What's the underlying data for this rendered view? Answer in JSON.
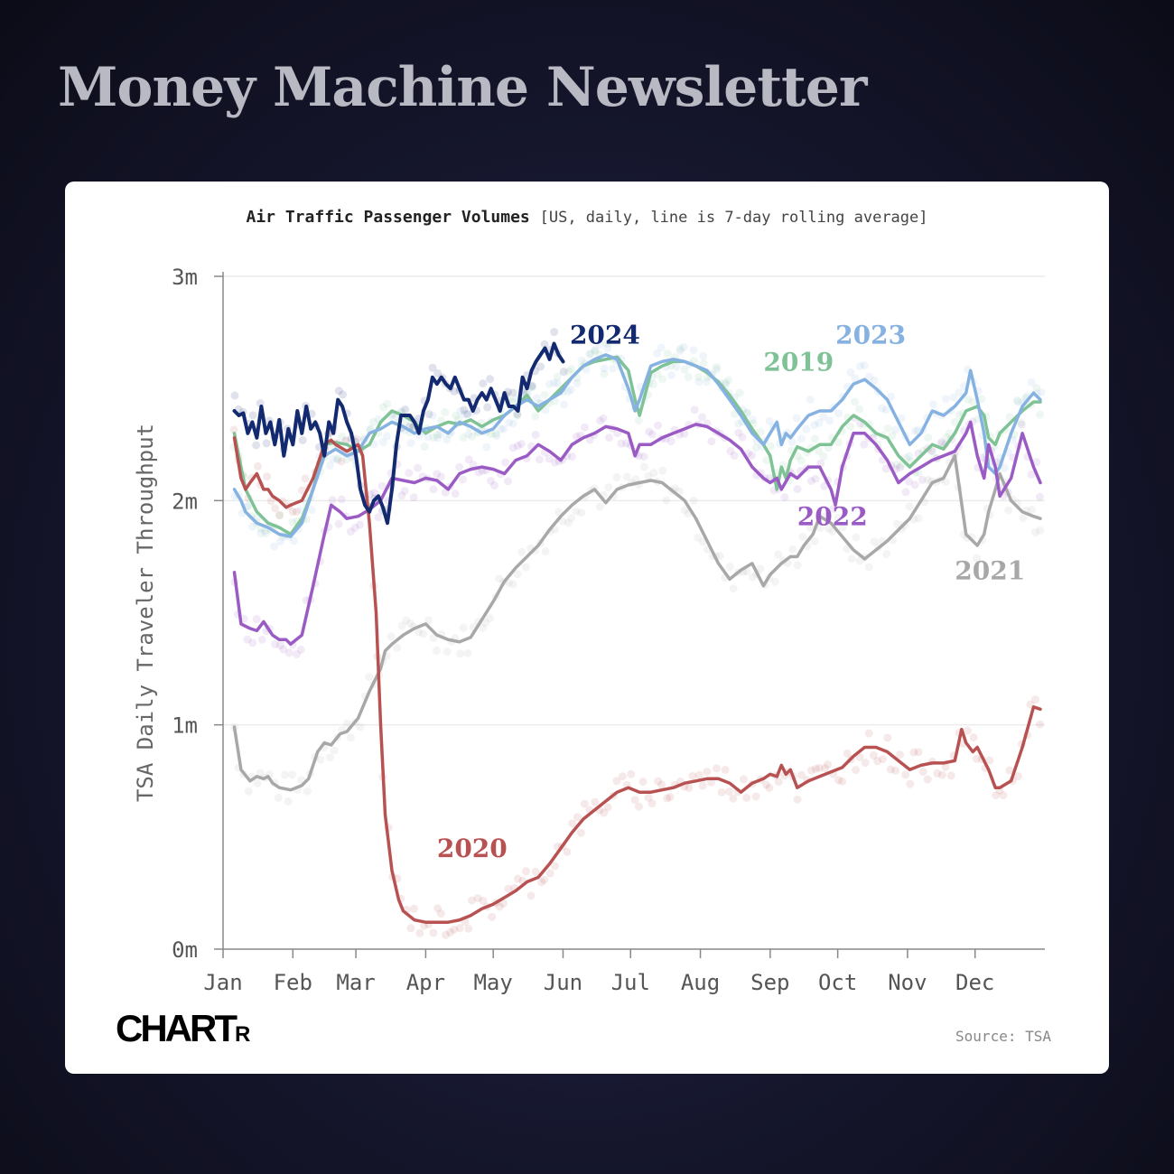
{
  "header": {
    "title": "Money Machine Newsletter"
  },
  "footer": {
    "brand": "CHART",
    "brand_suffix": "R",
    "source": "Source: TSA"
  },
  "colors": {
    "2019": "#7fc296",
    "2020": "#b85252",
    "2021": "#a8a8a8",
    "2022": "#9a5cc4",
    "2023": "#86b2e2",
    "2024": "#142a70"
  },
  "chart_data": {
    "type": "line",
    "title": "Air Traffic Passenger Volumes",
    "subtitle": "[US, daily, line is 7-day rolling average]",
    "xlabel": "",
    "ylabel": "TSA Daily Traveler Throughput",
    "xlim": [
      0,
      365
    ],
    "ylim": [
      0,
      3
    ],
    "y_unit": "millions",
    "yticks": [
      0,
      1,
      2,
      3
    ],
    "ytick_labels": [
      "0m",
      "1m",
      "2m",
      "3m"
    ],
    "months": [
      "Jan",
      "Feb",
      "Mar",
      "Apr",
      "May",
      "Jun",
      "Jul",
      "Aug",
      "Sep",
      "Oct",
      "Nov",
      "Dec"
    ],
    "month_days": [
      0,
      31,
      59,
      90,
      120,
      151,
      181,
      212,
      243,
      273,
      304,
      334
    ],
    "grid": true,
    "series": [
      {
        "name": "2021",
        "x": [
          5,
          8,
          12,
          15,
          18,
          20,
          22,
          25,
          30,
          35,
          38,
          42,
          45,
          48,
          52,
          55,
          60,
          65,
          70,
          72,
          75,
          80,
          85,
          90,
          95,
          100,
          105,
          110,
          115,
          120,
          125,
          130,
          135,
          140,
          145,
          150,
          155,
          160,
          165,
          170,
          175,
          180,
          185,
          190,
          195,
          200,
          205,
          210,
          215,
          220,
          225,
          230,
          235,
          240,
          243,
          248,
          252,
          255,
          258,
          262,
          265,
          270,
          275,
          280,
          285,
          290,
          295,
          300,
          305,
          310,
          315,
          320,
          325,
          330,
          335,
          338,
          340,
          343,
          345,
          350,
          355,
          360,
          363
        ],
        "values": [
          0.99,
          0.8,
          0.75,
          0.77,
          0.76,
          0.77,
          0.74,
          0.72,
          0.71,
          0.73,
          0.76,
          0.88,
          0.92,
          0.91,
          0.96,
          0.97,
          1.03,
          1.15,
          1.25,
          1.33,
          1.36,
          1.4,
          1.43,
          1.45,
          1.4,
          1.38,
          1.37,
          1.39,
          1.47,
          1.55,
          1.64,
          1.7,
          1.75,
          1.8,
          1.87,
          1.93,
          1.98,
          2.02,
          2.05,
          1.99,
          2.05,
          2.07,
          2.08,
          2.09,
          2.08,
          2.04,
          2.0,
          1.92,
          1.82,
          1.72,
          1.65,
          1.69,
          1.72,
          1.62,
          1.67,
          1.72,
          1.75,
          1.75,
          1.8,
          1.85,
          1.93,
          1.9,
          1.84,
          1.78,
          1.74,
          1.78,
          1.82,
          1.87,
          1.92,
          2.0,
          2.08,
          2.1,
          2.2,
          1.85,
          1.8,
          1.85,
          1.95,
          2.05,
          2.12,
          2.0,
          1.95,
          1.93,
          1.92
        ]
      },
      {
        "name": "2019",
        "x": [
          5,
          8,
          10,
          15,
          20,
          25,
          30,
          35,
          40,
          45,
          50,
          55,
          60,
          65,
          70,
          75,
          80,
          85,
          90,
          95,
          100,
          105,
          110,
          115,
          120,
          125,
          130,
          135,
          140,
          145,
          150,
          155,
          160,
          165,
          170,
          175,
          180,
          183,
          185,
          190,
          195,
          200,
          205,
          210,
          215,
          220,
          225,
          230,
          235,
          240,
          243,
          246,
          248,
          250,
          252,
          255,
          260,
          265,
          270,
          275,
          280,
          285,
          290,
          295,
          300,
          305,
          310,
          315,
          320,
          325,
          330,
          335,
          338,
          340,
          343,
          345,
          350,
          355,
          360,
          363
        ],
        "values": [
          2.3,
          2.15,
          2.05,
          1.95,
          1.9,
          1.88,
          1.85,
          1.92,
          2.05,
          2.25,
          2.26,
          2.25,
          2.22,
          2.25,
          2.35,
          2.4,
          2.38,
          2.35,
          2.3,
          2.33,
          2.35,
          2.34,
          2.36,
          2.33,
          2.36,
          2.38,
          2.42,
          2.47,
          2.4,
          2.45,
          2.5,
          2.55,
          2.6,
          2.62,
          2.63,
          2.64,
          2.58,
          2.45,
          2.38,
          2.57,
          2.6,
          2.62,
          2.62,
          2.6,
          2.57,
          2.53,
          2.47,
          2.4,
          2.32,
          2.25,
          2.2,
          2.05,
          2.15,
          2.1,
          2.18,
          2.24,
          2.22,
          2.25,
          2.25,
          2.33,
          2.38,
          2.35,
          2.3,
          2.28,
          2.2,
          2.15,
          2.2,
          2.25,
          2.23,
          2.3,
          2.4,
          2.42,
          2.38,
          2.28,
          2.25,
          2.3,
          2.35,
          2.4,
          2.44,
          2.44
        ]
      },
      {
        "name": "2023",
        "x": [
          5,
          8,
          10,
          15,
          20,
          25,
          30,
          35,
          40,
          45,
          50,
          55,
          60,
          65,
          70,
          75,
          80,
          85,
          90,
          95,
          100,
          105,
          110,
          115,
          120,
          125,
          130,
          135,
          140,
          145,
          150,
          155,
          160,
          165,
          170,
          175,
          180,
          183,
          185,
          190,
          195,
          200,
          205,
          210,
          215,
          220,
          225,
          230,
          235,
          240,
          243,
          246,
          248,
          250,
          252,
          255,
          260,
          265,
          270,
          275,
          280,
          285,
          290,
          295,
          300,
          305,
          310,
          315,
          320,
          325,
          330,
          332,
          335,
          338,
          340,
          343,
          345,
          350,
          355,
          360,
          363
        ],
        "values": [
          2.05,
          2.0,
          1.95,
          1.9,
          1.88,
          1.85,
          1.84,
          1.9,
          2.05,
          2.2,
          2.23,
          2.2,
          2.22,
          2.3,
          2.32,
          2.35,
          2.33,
          2.3,
          2.32,
          2.33,
          2.3,
          2.35,
          2.33,
          2.3,
          2.32,
          2.38,
          2.42,
          2.45,
          2.42,
          2.45,
          2.48,
          2.55,
          2.6,
          2.63,
          2.65,
          2.63,
          2.5,
          2.4,
          2.45,
          2.6,
          2.62,
          2.63,
          2.62,
          2.6,
          2.58,
          2.52,
          2.45,
          2.38,
          2.3,
          2.25,
          2.3,
          2.35,
          2.25,
          2.3,
          2.28,
          2.32,
          2.38,
          2.4,
          2.4,
          2.45,
          2.52,
          2.54,
          2.5,
          2.45,
          2.35,
          2.25,
          2.3,
          2.4,
          2.38,
          2.42,
          2.48,
          2.58,
          2.45,
          2.3,
          2.15,
          2.12,
          2.15,
          2.3,
          2.42,
          2.48,
          2.45
        ]
      },
      {
        "name": "2022",
        "x": [
          5,
          8,
          12,
          15,
          18,
          20,
          22,
          25,
          28,
          30,
          35,
          40,
          45,
          48,
          52,
          55,
          60,
          65,
          70,
          75,
          80,
          85,
          90,
          95,
          100,
          105,
          110,
          115,
          120,
          125,
          130,
          135,
          140,
          145,
          150,
          155,
          160,
          165,
          170,
          175,
          180,
          183,
          185,
          190,
          195,
          200,
          205,
          210,
          215,
          220,
          225,
          230,
          235,
          240,
          243,
          246,
          248,
          252,
          255,
          260,
          265,
          270,
          272,
          275,
          280,
          285,
          290,
          295,
          300,
          305,
          310,
          315,
          320,
          325,
          330,
          332,
          335,
          338,
          340,
          343,
          345,
          350,
          355,
          360,
          363
        ],
        "values": [
          1.68,
          1.45,
          1.43,
          1.42,
          1.46,
          1.43,
          1.4,
          1.38,
          1.38,
          1.36,
          1.4,
          1.62,
          1.85,
          1.98,
          1.95,
          1.92,
          1.93,
          1.96,
          2.0,
          2.1,
          2.09,
          2.08,
          2.1,
          2.09,
          2.05,
          2.12,
          2.14,
          2.15,
          2.14,
          2.12,
          2.18,
          2.2,
          2.25,
          2.22,
          2.18,
          2.25,
          2.28,
          2.3,
          2.33,
          2.32,
          2.3,
          2.2,
          2.25,
          2.25,
          2.28,
          2.3,
          2.32,
          2.34,
          2.33,
          2.3,
          2.27,
          2.23,
          2.15,
          2.1,
          2.08,
          2.1,
          2.05,
          2.12,
          2.1,
          2.15,
          2.15,
          2.05,
          1.98,
          2.15,
          2.3,
          2.3,
          2.25,
          2.18,
          2.08,
          2.12,
          2.15,
          2.18,
          2.2,
          2.22,
          2.3,
          2.35,
          2.2,
          2.1,
          2.25,
          2.15,
          2.02,
          2.1,
          2.3,
          2.15,
          2.08
        ]
      },
      {
        "name": "2020",
        "x": [
          5,
          8,
          10,
          12,
          15,
          18,
          20,
          22,
          25,
          28,
          30,
          35,
          40,
          45,
          48,
          50,
          55,
          60,
          62,
          65,
          68,
          70,
          72,
          75,
          78,
          80,
          85,
          90,
          95,
          100,
          105,
          110,
          115,
          120,
          125,
          130,
          135,
          140,
          145,
          150,
          155,
          160,
          165,
          170,
          175,
          180,
          185,
          190,
          195,
          200,
          205,
          210,
          215,
          220,
          225,
          230,
          235,
          240,
          243,
          246,
          248,
          250,
          252,
          255,
          260,
          265,
          270,
          275,
          280,
          285,
          290,
          295,
          300,
          305,
          310,
          315,
          320,
          325,
          328,
          330,
          333,
          335,
          340,
          343,
          345,
          350,
          355,
          360,
          363
        ],
        "values": [
          2.28,
          2.1,
          2.05,
          2.08,
          2.12,
          2.05,
          2.05,
          2.02,
          2.0,
          1.97,
          1.98,
          2.0,
          2.1,
          2.25,
          2.27,
          2.25,
          2.22,
          2.25,
          2.2,
          1.9,
          1.5,
          1.0,
          0.6,
          0.35,
          0.22,
          0.17,
          0.13,
          0.12,
          0.12,
          0.12,
          0.13,
          0.15,
          0.18,
          0.2,
          0.23,
          0.26,
          0.3,
          0.32,
          0.38,
          0.45,
          0.52,
          0.58,
          0.62,
          0.66,
          0.7,
          0.72,
          0.7,
          0.7,
          0.71,
          0.72,
          0.74,
          0.75,
          0.76,
          0.76,
          0.74,
          0.7,
          0.74,
          0.76,
          0.78,
          0.77,
          0.82,
          0.78,
          0.8,
          0.72,
          0.75,
          0.77,
          0.79,
          0.81,
          0.86,
          0.9,
          0.9,
          0.88,
          0.84,
          0.8,
          0.82,
          0.83,
          0.83,
          0.84,
          0.98,
          0.92,
          0.88,
          0.9,
          0.8,
          0.72,
          0.72,
          0.75,
          0.9,
          1.08,
          1.07
        ]
      },
      {
        "name": "2024",
        "x": [
          5,
          7,
          9,
          11,
          13,
          15,
          17,
          19,
          21,
          23,
          25,
          27,
          29,
          31,
          33,
          35,
          37,
          39,
          41,
          43,
          45,
          47,
          49,
          51,
          53,
          55,
          57,
          59,
          61,
          63,
          65,
          67,
          69,
          71,
          73,
          75,
          77,
          79,
          81,
          83,
          85,
          87,
          89,
          91,
          93,
          95,
          97,
          99,
          101,
          103,
          105,
          107,
          109,
          111,
          113,
          115,
          117,
          119,
          121,
          123,
          125,
          127,
          129,
          131,
          133,
          135,
          137,
          139,
          141,
          143,
          145,
          147,
          149,
          151
        ],
        "values": [
          2.4,
          2.38,
          2.39,
          2.3,
          2.35,
          2.28,
          2.42,
          2.3,
          2.35,
          2.25,
          2.36,
          2.2,
          2.32,
          2.25,
          2.4,
          2.3,
          2.42,
          2.32,
          2.35,
          2.3,
          2.2,
          2.35,
          2.3,
          2.45,
          2.42,
          2.35,
          2.3,
          2.2,
          2.05,
          1.98,
          1.95,
          2.0,
          2.02,
          1.97,
          1.9,
          2.05,
          2.25,
          2.38,
          2.38,
          2.38,
          2.35,
          2.3,
          2.4,
          2.45,
          2.55,
          2.52,
          2.55,
          2.52,
          2.5,
          2.55,
          2.5,
          2.45,
          2.45,
          2.4,
          2.45,
          2.48,
          2.45,
          2.5,
          2.45,
          2.4,
          2.48,
          2.42,
          2.42,
          2.4,
          2.55,
          2.5,
          2.58,
          2.62,
          2.65,
          2.68,
          2.63,
          2.7,
          2.65,
          2.62
        ]
      }
    ],
    "labels": [
      {
        "series": "2024",
        "text": "2024",
        "x": 154,
        "y": 2.7
      },
      {
        "series": "2023",
        "text": "2023",
        "x": 272,
        "y": 2.7
      },
      {
        "series": "2019",
        "text": "2019",
        "x": 240,
        "y": 2.58
      },
      {
        "series": "2022",
        "text": "2022",
        "x": 255,
        "y": 1.89
      },
      {
        "series": "2021",
        "text": "2021",
        "x": 325,
        "y": 1.65
      },
      {
        "series": "2020",
        "text": "2020",
        "x": 95,
        "y": 0.41
      }
    ]
  }
}
